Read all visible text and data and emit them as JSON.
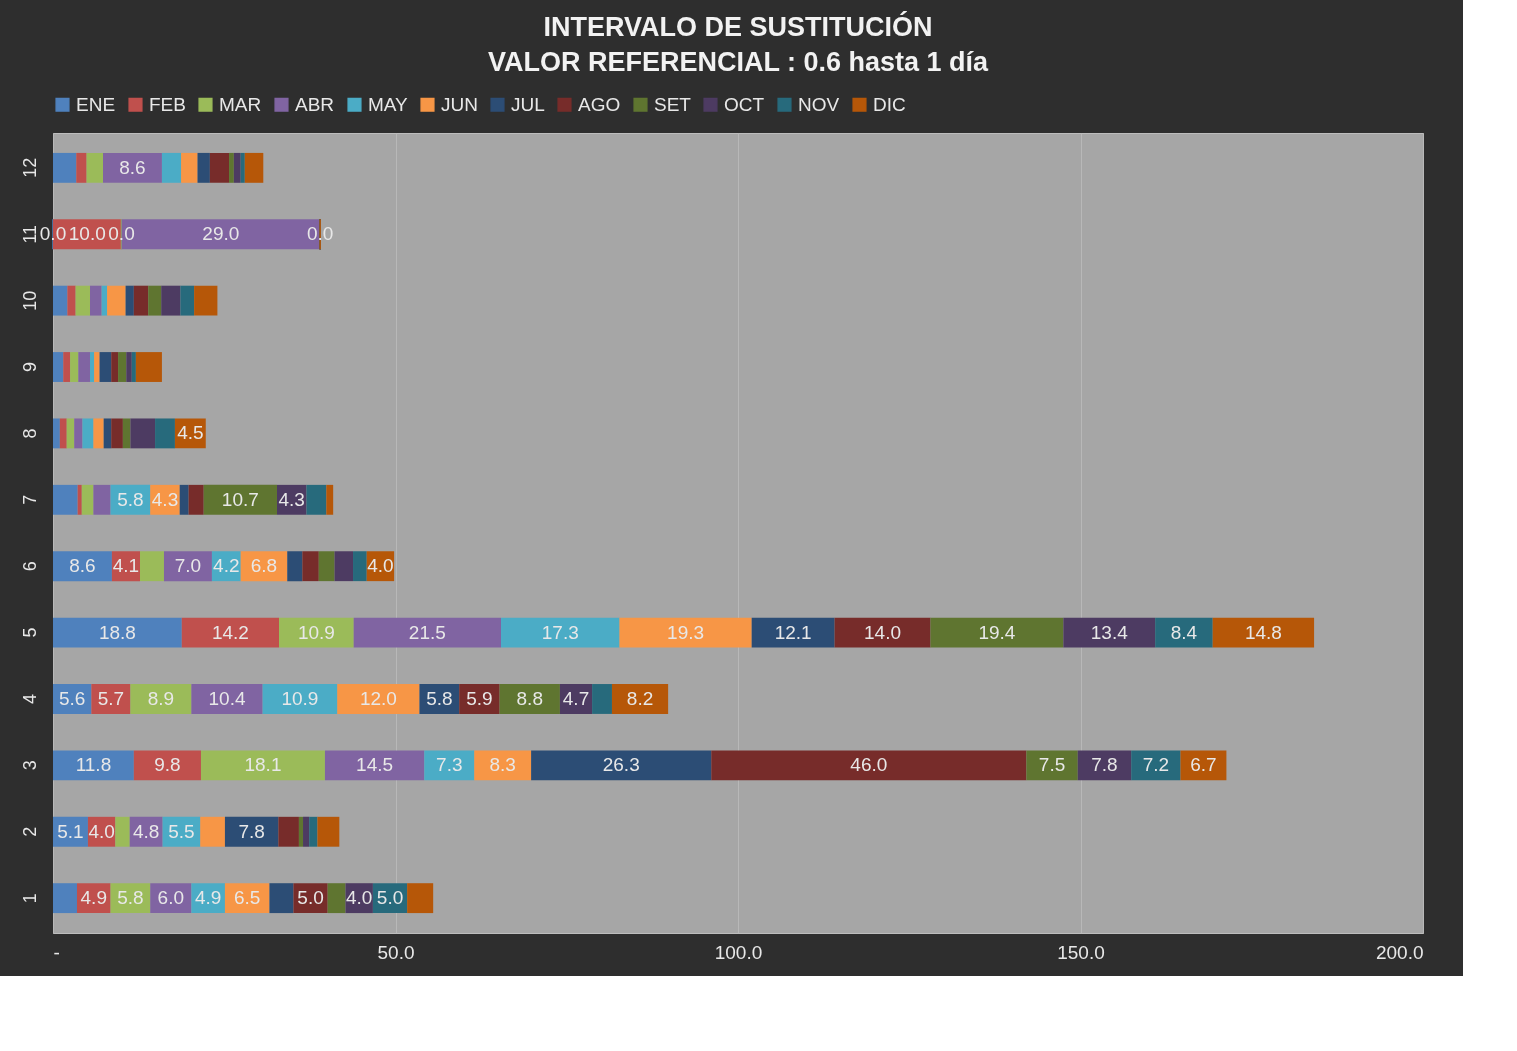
{
  "chart_data": {
    "type": "bar",
    "orientation": "horizontal",
    "stacked": true,
    "title": "INTERVALO DE SUSTITUCIÓN",
    "subtitle": "VALOR REFERENCIAL : 0.6 hasta 1 día",
    "categories": [
      "12",
      "11",
      "10",
      "9",
      "8",
      "7",
      "6",
      "5",
      "4",
      "3",
      "2",
      "1"
    ],
    "series": [
      {
        "name": "ENE",
        "color": "#4f81bd",
        "values": [
          3.4,
          0.0,
          2.1,
          1.5,
          1.0,
          3.6,
          8.6,
          18.8,
          5.6,
          11.8,
          5.1,
          3.5
        ],
        "value_labels": [
          null,
          "0.0",
          null,
          null,
          null,
          null,
          "8.6",
          "18.8",
          "5.6",
          "11.8",
          "5.1",
          null
        ]
      },
      {
        "name": "FEB",
        "color": "#c0504d",
        "values": [
          1.5,
          10.0,
          1.2,
          1.0,
          1.0,
          0.6,
          4.1,
          14.2,
          5.7,
          9.8,
          4.0,
          4.9
        ],
        "value_labels": [
          null,
          "10.0",
          null,
          null,
          null,
          null,
          "4.1",
          "14.2",
          "5.7",
          "9.8",
          "4.0",
          "4.9"
        ]
      },
      {
        "name": "MAR",
        "color": "#9bbb59",
        "values": [
          2.4,
          0.0,
          2.1,
          1.2,
          1.1,
          1.7,
          3.5,
          10.9,
          8.9,
          18.1,
          2.1,
          5.8
        ],
        "value_labels": [
          null,
          "0.0",
          null,
          null,
          null,
          null,
          null,
          "10.9",
          "8.9",
          "18.1",
          null,
          "5.8"
        ]
      },
      {
        "name": "ABR",
        "color": "#8064a2",
        "values": [
          8.6,
          29.0,
          1.7,
          1.7,
          1.2,
          2.5,
          7.0,
          21.5,
          10.4,
          14.5,
          4.8,
          6.0
        ],
        "value_labels": [
          "8.6",
          "29.0",
          null,
          null,
          null,
          null,
          "7.0",
          "21.5",
          "10.4",
          "14.5",
          "4.8",
          "6.0"
        ]
      },
      {
        "name": "MAY",
        "color": "#4bacc6",
        "values": [
          2.8,
          0.0,
          0.8,
          0.6,
          1.6,
          5.8,
          4.2,
          17.3,
          10.9,
          7.3,
          5.5,
          4.9
        ],
        "value_labels": [
          null,
          "0.0",
          null,
          null,
          null,
          "5.8",
          "4.2",
          "17.3",
          "10.9",
          "7.3",
          "5.5",
          "4.9"
        ]
      },
      {
        "name": "JUN",
        "color": "#f79646",
        "values": [
          2.4,
          0.0,
          2.7,
          0.8,
          1.5,
          4.3,
          6.8,
          19.3,
          12.0,
          8.3,
          3.6,
          6.5
        ],
        "value_labels": [
          null,
          null,
          null,
          null,
          null,
          "4.3",
          "6.8",
          "19.3",
          "12.0",
          "8.3",
          null,
          "6.5"
        ]
      },
      {
        "name": "JUL",
        "color": "#2c4d75",
        "values": [
          1.8,
          0.0,
          1.2,
          1.7,
          1.1,
          1.3,
          2.2,
          12.1,
          5.8,
          26.3,
          7.8,
          3.5
        ],
        "value_labels": [
          null,
          null,
          null,
          null,
          null,
          null,
          null,
          "12.1",
          "5.8",
          "26.3",
          "7.8",
          null
        ]
      },
      {
        "name": "AGO",
        "color": "#772c2a",
        "values": [
          2.8,
          0.0,
          2.1,
          1.0,
          1.7,
          2.2,
          2.4,
          14.0,
          5.9,
          46.0,
          3.0,
          5.0
        ],
        "value_labels": [
          null,
          null,
          null,
          null,
          null,
          null,
          null,
          "14.0",
          "5.9",
          "46.0",
          null,
          "5.0"
        ]
      },
      {
        "name": "SET",
        "color": "#5f7530",
        "values": [
          0.7,
          0.0,
          1.9,
          1.2,
          1.1,
          10.7,
          2.3,
          19.4,
          8.8,
          7.5,
          0.6,
          2.6
        ],
        "value_labels": [
          null,
          null,
          null,
          null,
          null,
          "10.7",
          null,
          "19.4",
          "8.8",
          "7.5",
          null,
          null
        ]
      },
      {
        "name": "OCT",
        "color": "#4d3b62",
        "values": [
          1.0,
          0.0,
          2.8,
          0.8,
          3.6,
          4.3,
          2.7,
          13.4,
          4.7,
          7.8,
          0.9,
          4.0
        ],
        "value_labels": [
          null,
          null,
          null,
          null,
          null,
          "4.3",
          null,
          "13.4",
          "4.7",
          "7.8",
          null,
          "4.0"
        ]
      },
      {
        "name": "NOV",
        "color": "#276a7c",
        "values": [
          0.6,
          0.0,
          2.0,
          0.6,
          2.9,
          2.9,
          2.0,
          8.4,
          2.9,
          7.2,
          1.2,
          5.0
        ],
        "value_labels": [
          null,
          null,
          null,
          null,
          null,
          null,
          null,
          "8.4",
          null,
          "7.2",
          null,
          "5.0"
        ]
      },
      {
        "name": "DIC",
        "color": "#b65708",
        "values": [
          2.7,
          0.0,
          3.4,
          3.8,
          4.5,
          1.0,
          4.0,
          14.8,
          8.2,
          6.7,
          3.2,
          3.8
        ],
        "value_labels": [
          null,
          null,
          null,
          null,
          "4.5",
          null,
          "4.0",
          "14.8",
          "8.2",
          "6.7",
          null,
          null
        ]
      }
    ],
    "xlim": [
      0,
      200
    ],
    "xticks": [
      {
        "value": 0,
        "label": "-"
      },
      {
        "value": 50,
        "label": "50.0"
      },
      {
        "value": 100,
        "label": "100.0"
      },
      {
        "value": 150,
        "label": "150.0"
      },
      {
        "value": 200,
        "label": "200.0"
      }
    ],
    "grid": "x",
    "legend": "top"
  }
}
